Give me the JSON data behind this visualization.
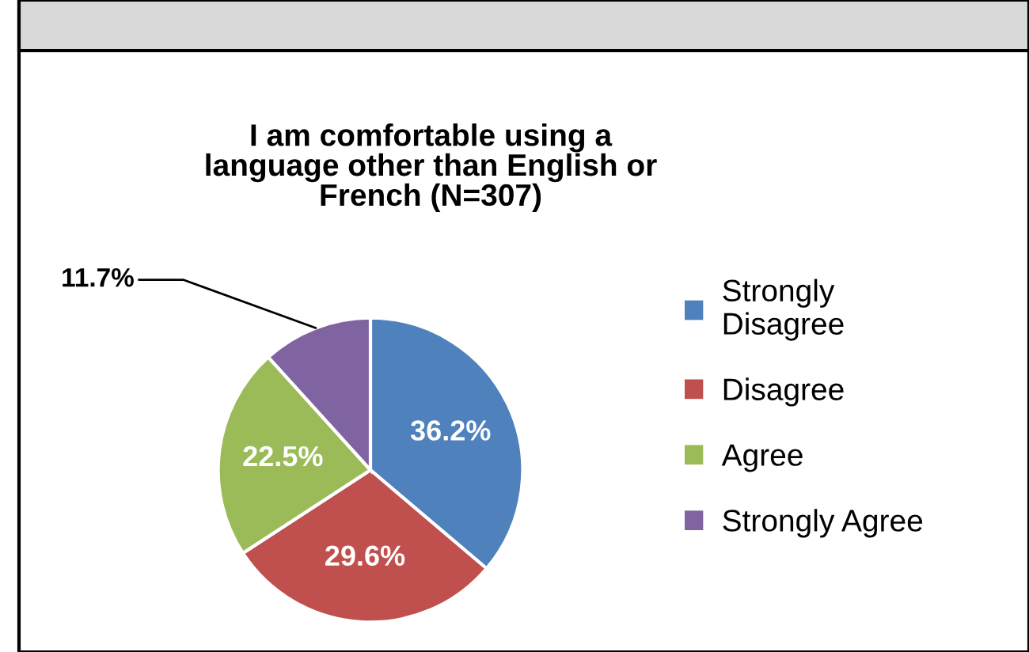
{
  "chart_data": {
    "type": "pie",
    "title": "I am comfortable using a\nlanguage other than English or\nFrench (N=307)",
    "categories": [
      "Strongly Disagree",
      "Disagree",
      "Agree",
      "Strongly Agree"
    ],
    "values": [
      36.2,
      29.6,
      22.5,
      11.7
    ],
    "colors": [
      "#4f81bd",
      "#c0504d",
      "#9bbb59",
      "#8064a2"
    ],
    "value_labels": [
      "36.2%",
      "29.6%",
      "22.5%",
      "11.7%"
    ],
    "legend": "right"
  }
}
